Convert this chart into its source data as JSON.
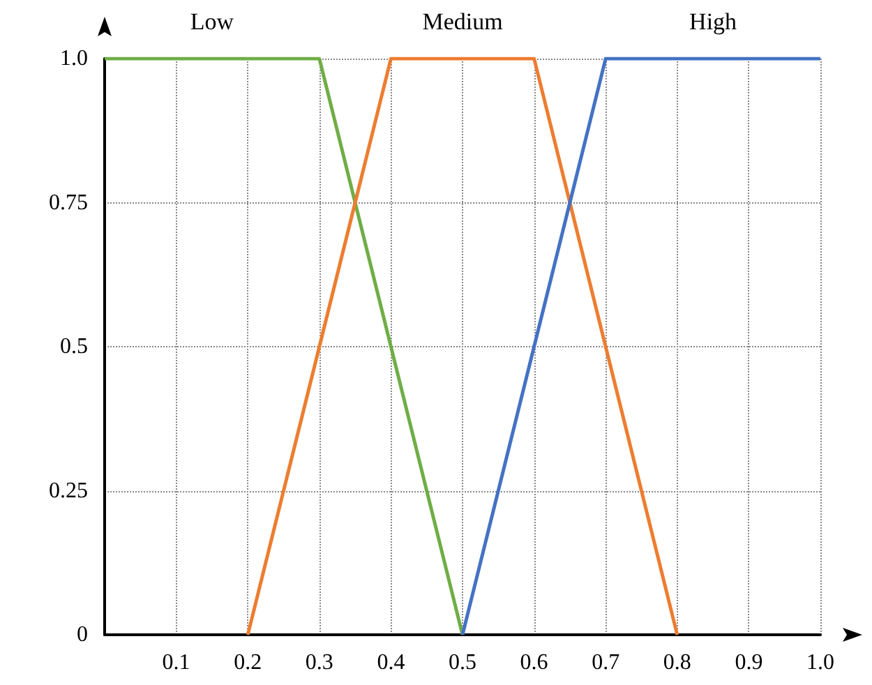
{
  "chart_data": {
    "type": "line",
    "xlim": [
      0,
      1.0
    ],
    "ylim": [
      0,
      1.0
    ],
    "xticks": [
      {
        "value": 0,
        "label": null
      },
      0.1,
      0.2,
      0.3,
      0.4,
      0.5,
      0.6,
      0.7,
      0.8,
      0.9,
      {
        "value": 1.0,
        "label": "1.0"
      }
    ],
    "yticks": [
      0,
      0.25,
      0.5,
      0.75,
      {
        "value": 1.0,
        "label": "1.0"
      }
    ],
    "grid": true,
    "legend": false,
    "marker": "none",
    "line_style": "solid",
    "series": [
      {
        "name": "Low",
        "color": "#70ad47",
        "x": [
          0,
          0.3,
          0.5
        ],
        "values": [
          1,
          1,
          0
        ]
      },
      {
        "name": "Medium",
        "color": "#ed7d31",
        "x": [
          0.2,
          0.4,
          0.6,
          0.8
        ],
        "values": [
          0,
          1,
          1,
          0
        ]
      },
      {
        "name": "High",
        "color": "#4472c4",
        "x": [
          0.5,
          0.7,
          1.0
        ],
        "values": [
          0,
          1,
          1
        ]
      }
    ]
  }
}
